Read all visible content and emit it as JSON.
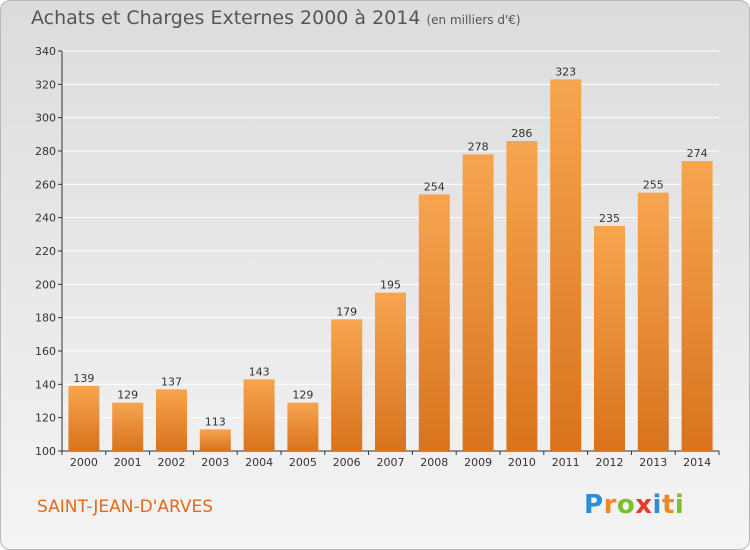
{
  "title": "Achats et Charges Externes 2000 à 2014",
  "subtitle": "(en milliers d'€)",
  "commune": "SAINT-JEAN-D'ARVES",
  "logo": {
    "letters": [
      "P",
      "r",
      "o",
      "x",
      "i",
      "t",
      "i"
    ],
    "colors": [
      "#2a8fd6",
      "#f08a1e",
      "#7bbf2a",
      "#e33b2e",
      "#2a8fd6",
      "#f08a1e",
      "#7bbf2a"
    ]
  },
  "colors": {
    "bar_light": "#f7a54f",
    "bar_dark": "#d9731d",
    "grid": "#ffffff",
    "axis": "#333333"
  },
  "chart_data": {
    "type": "bar",
    "categories": [
      "2000",
      "2001",
      "2002",
      "2003",
      "2004",
      "2005",
      "2006",
      "2007",
      "2008",
      "2009",
      "2010",
      "2011",
      "2012",
      "2013",
      "2014"
    ],
    "values": [
      139,
      129,
      137,
      113,
      143,
      129,
      179,
      195,
      254,
      278,
      286,
      323,
      235,
      255,
      274
    ],
    "title": "Achats et Charges Externes 2000 à 2014",
    "ylabel": "",
    "xlabel": "",
    "ylim": [
      100,
      340
    ],
    "yticks": [
      100,
      120,
      140,
      160,
      180,
      200,
      220,
      240,
      260,
      280,
      300,
      320,
      340
    ],
    "grid": true
  }
}
